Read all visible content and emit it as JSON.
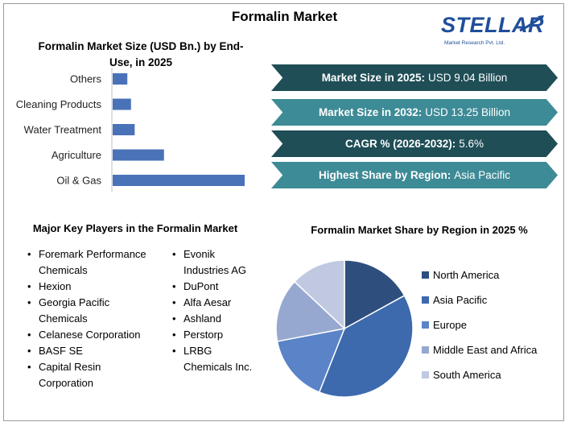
{
  "title": "Formalin Market",
  "logo": {
    "name": "STELLAR",
    "tagline": "Market Research Pvt. Ltd."
  },
  "bar_chart_title": "Formalin Market Size (USD Bn.) by End-Use, in 2025",
  "stats": [
    {
      "label": "Market Size in 2025:",
      "value": "USD 9.04 Billion",
      "style": "dark"
    },
    {
      "label": "Market Size in 2032:",
      "value": "USD 13.25 Billion",
      "style": "light"
    },
    {
      "label": "CAGR % (2026-2032):",
      "value": "5.6%",
      "style": "dark"
    },
    {
      "label": "Highest Share by Region:",
      "value": "Asia Pacific",
      "style": "light"
    }
  ],
  "players_title": "Major Key Players in the Formalin Market",
  "players_left": [
    "Foremark Performance Chemicals",
    "Hexion",
    "Georgia Pacific Chemicals",
    "Celanese Corporation",
    "BASF SE",
    "Capital Resin Corporation"
  ],
  "players_right": [
    "Evonik Industries AG",
    "DuPont",
    "Alfa Aesar",
    "Ashland",
    "Perstorp",
    "LRBG Chemicals Inc."
  ],
  "pie_chart_title": "Formalin Market Share by Region in 2025 %",
  "chart_data": [
    {
      "type": "bar",
      "orientation": "horizontal",
      "categories": [
        "Others",
        "Cleaning Products",
        "Water Treatment",
        "Agriculture",
        "Oil & Gas"
      ],
      "values": [
        0.4,
        0.5,
        0.6,
        1.4,
        3.6
      ],
      "color": "#4a72b8",
      "grid": false
    },
    {
      "type": "pie",
      "categories": [
        "North America",
        "Asia Pacific",
        "Europe",
        "Middle East and Africa",
        "South America"
      ],
      "values": [
        17,
        39,
        16,
        15,
        13
      ],
      "colors": [
        "#2e4f7e",
        "#3d69ad",
        "#5a83c8",
        "#97a8d0",
        "#c0c9e1"
      ],
      "legend": "right"
    }
  ]
}
